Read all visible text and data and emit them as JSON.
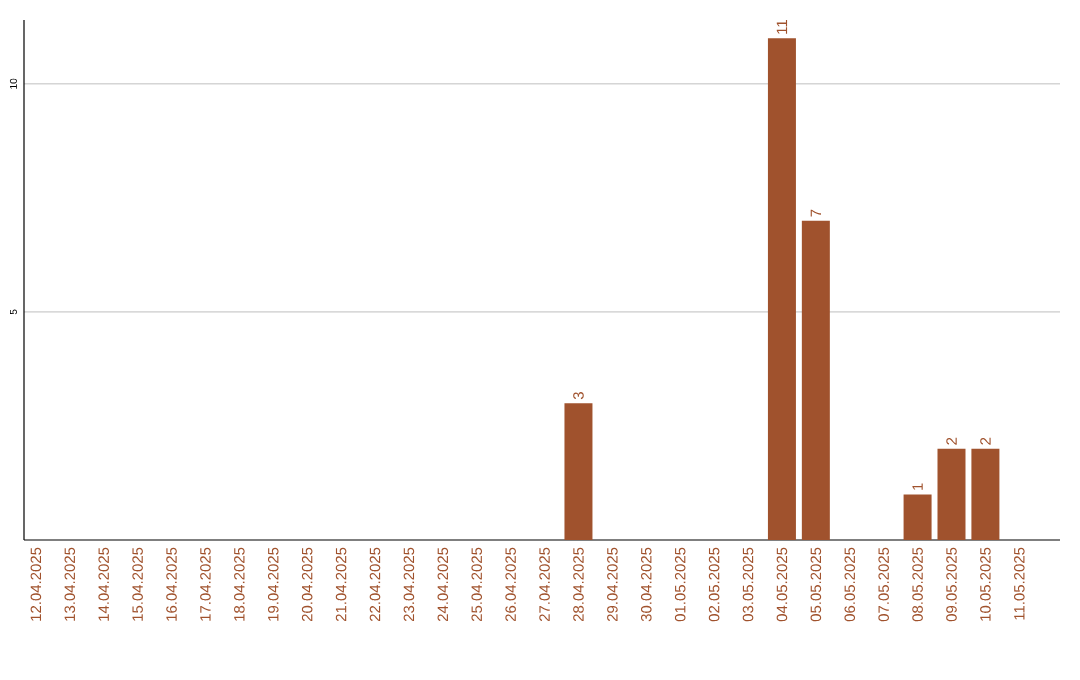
{
  "chart_data": {
    "type": "bar",
    "categories": [
      "12.04.2025",
      "13.04.2025",
      "14.04.2025",
      "15.04.2025",
      "16.04.2025",
      "17.04.2025",
      "18.04.2025",
      "19.04.2025",
      "20.04.2025",
      "21.04.2025",
      "22.04.2025",
      "23.04.2025",
      "24.04.2025",
      "25.04.2025",
      "26.04.2025",
      "27.04.2025",
      "28.04.2025",
      "29.04.2025",
      "30.04.2025",
      "01.05.2025",
      "02.05.2025",
      "03.05.2025",
      "04.05.2025",
      "05.05.2025",
      "06.05.2025",
      "07.05.2025",
      "08.05.2025",
      "09.05.2025",
      "10.05.2025",
      "11.05.2025"
    ],
    "values": [
      0,
      0,
      0,
      0,
      0,
      0,
      0,
      0,
      0,
      0,
      0,
      0,
      0,
      0,
      0,
      0,
      3,
      0,
      0,
      0,
      0,
      0,
      11,
      7,
      0,
      0,
      1,
      2,
      2,
      0
    ],
    "value_labels": [
      null,
      null,
      null,
      null,
      null,
      null,
      null,
      null,
      null,
      null,
      null,
      null,
      null,
      null,
      null,
      null,
      "3",
      null,
      null,
      null,
      null,
      null,
      "11",
      "7",
      null,
      null,
      "1",
      "2",
      "2",
      null
    ],
    "color": "#a0522d",
    "ylim": [
      0,
      11.4
    ],
    "yticks": [
      5,
      10
    ],
    "grid": "y"
  }
}
